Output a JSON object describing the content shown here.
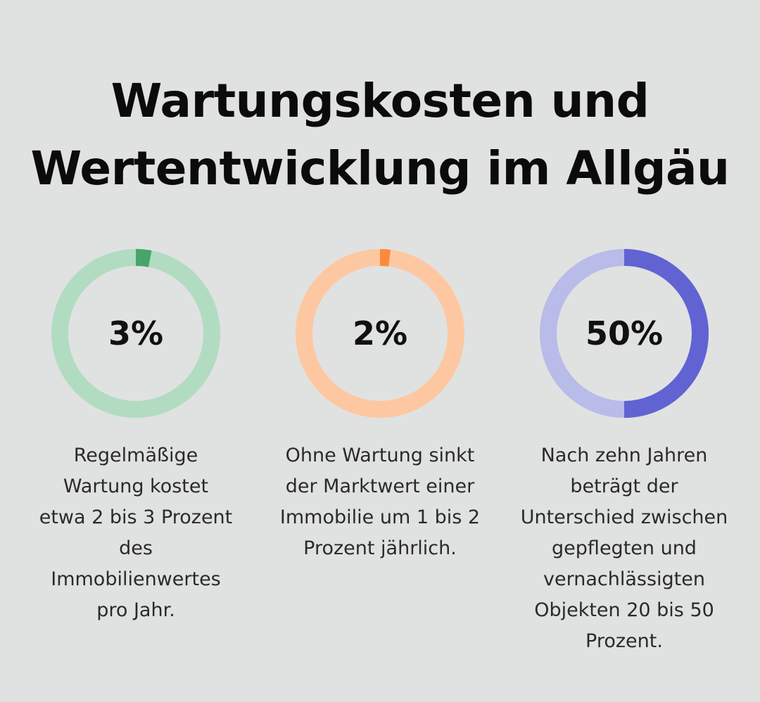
{
  "title": {
    "line1": "Wartungskosten und",
    "line2": "Wertentwicklung im Allgäu"
  },
  "chart_data": [
    {
      "type": "pie",
      "variant": "donut",
      "value": 3,
      "max": 100,
      "label": "3%",
      "caption": "Regelmäßige Wartung kostet etwa 2 bis 3 Prozent des Immobilienwertes pro Jahr.",
      "color": "#47a56b",
      "track_color": "#b2dcc1"
    },
    {
      "type": "pie",
      "variant": "donut",
      "value": 2,
      "max": 100,
      "label": "2%",
      "caption": "Ohne Wartung sinkt der Marktwert einer Immobilie um 1 bis 2 Prozent jährlich.",
      "color": "#fb8a39",
      "track_color": "#fdc8a1"
    },
    {
      "type": "pie",
      "variant": "donut",
      "value": 50,
      "max": 100,
      "label": "50%",
      "caption": "Nach zehn Jahren beträgt der Unterschied zwischen gepflegten und vernachlässigten Objekten 20 bis 50 Prozent.",
      "color": "#6163d3",
      "track_color": "#b9bbe9"
    }
  ]
}
